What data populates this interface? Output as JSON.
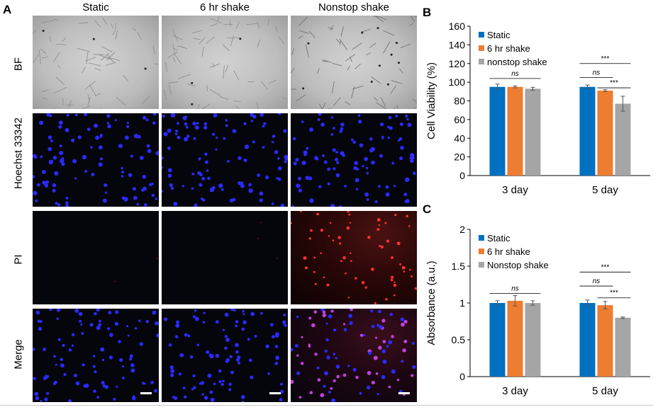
{
  "panel_a": {
    "letter": "A",
    "columns": [
      "Static",
      "6 hr shake",
      "Nonstop shake"
    ],
    "rows": [
      "BF",
      "Hoechst 33342",
      "PI",
      "Merge"
    ]
  },
  "panel_b": {
    "letter": "B"
  },
  "panel_c": {
    "letter": "C"
  },
  "colors": {
    "static": "#0070C0",
    "shake6": "#ED7D31",
    "nonstop": "#A5A5A5"
  },
  "chart_data": [
    {
      "type": "bar",
      "categories": [
        "3 day",
        "5 day"
      ],
      "series": [
        {
          "name": "Static",
          "values": [
            95,
            95
          ],
          "errors": [
            3,
            2
          ]
        },
        {
          "name": "6 hr shake",
          "values": [
            95,
            91
          ],
          "errors": [
            1,
            1
          ]
        },
        {
          "name": "nonstop shake",
          "values": [
            93,
            77
          ],
          "errors": [
            1.5,
            8
          ]
        }
      ],
      "ylabel": "Cell Viability (%)",
      "xlabel": "",
      "ylim": [
        0,
        160
      ],
      "yticks": [
        0,
        20,
        40,
        60,
        80,
        100,
        120,
        140,
        160
      ],
      "legend": "top-left",
      "annotations": {
        "3 day": [
          {
            "label": "ns",
            "from": "Static",
            "to": "nonstop shake",
            "at": 104
          }
        ],
        "5 day": [
          {
            "label": "***",
            "from": "Static",
            "to": "nonstop shake",
            "at": 120
          },
          {
            "label": "ns",
            "from": "Static",
            "to": "6 hr shake",
            "at": 105
          },
          {
            "label": "***",
            "from": "6 hr shake",
            "to": "nonstop shake",
            "at": 94
          }
        ]
      }
    },
    {
      "type": "bar",
      "categories": [
        "3 day",
        "5 day"
      ],
      "series": [
        {
          "name": "Static",
          "values": [
            1.0,
            1.0
          ],
          "errors": [
            0.03,
            0.04
          ]
        },
        {
          "name": "6 hr shake",
          "values": [
            1.03,
            0.97
          ],
          "errors": [
            0.07,
            0.05
          ]
        },
        {
          "name": "Nonstop shake",
          "values": [
            1.0,
            0.8
          ],
          "errors": [
            0.03,
            0.01
          ]
        }
      ],
      "ylabel": "Absorbance (a.u.)",
      "xlabel": "",
      "ylim": [
        0,
        2
      ],
      "yticks": [
        "0",
        "0.5",
        "1",
        "1.5",
        "2"
      ],
      "legend": "top-left",
      "annotations": {
        "3 day": [
          {
            "label": "ns",
            "from": "Static",
            "to": "Nonstop shake",
            "at": 1.13
          }
        ],
        "5 day": [
          {
            "label": "***",
            "from": "Static",
            "to": "Nonstop shake",
            "at": 1.42
          },
          {
            "label": "ns",
            "from": "Static",
            "to": "6 hr shake",
            "at": 1.23
          },
          {
            "label": "***",
            "from": "6 hr shake",
            "to": "Nonstop shake",
            "at": 1.07
          }
        ]
      }
    }
  ]
}
